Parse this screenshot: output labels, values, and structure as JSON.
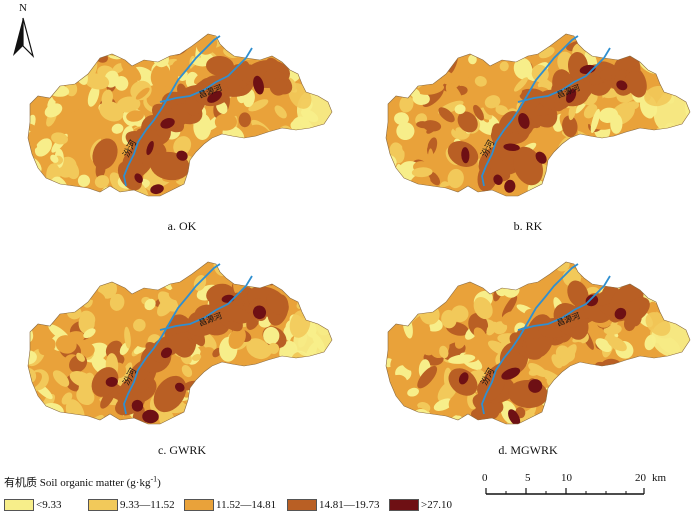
{
  "north": {
    "label": "N"
  },
  "panels": [
    {
      "id": "a",
      "caption": "a. OK"
    },
    {
      "id": "b",
      "caption": "b. RK"
    },
    {
      "id": "c",
      "caption": "c. GWRK"
    },
    {
      "id": "d",
      "caption": "d. MGWRK"
    }
  ],
  "river_labels": {
    "lower": "汾河",
    "upper": "昌源河"
  },
  "legend": {
    "title_cn": "有机质",
    "title_en": "Soil organic matter (g·kg",
    "title_sup": "-1",
    "title_close": ")",
    "classes": [
      {
        "label": "<9.33",
        "color": "#f7ee8a"
      },
      {
        "label": "9.33—11.52",
        "color": "#f2c95a"
      },
      {
        "label": "11.52—14.81",
        "color": "#e9a23a"
      },
      {
        "label": "14.81—19.73",
        "color": "#b95f24"
      },
      {
        "label": ">27.10",
        "color": "#6e1014"
      }
    ]
  },
  "scalebar": {
    "ticks": [
      "0",
      "5",
      "10",
      "20"
    ],
    "unit": "km"
  },
  "colors": {
    "river": "#2f8fd0"
  }
}
